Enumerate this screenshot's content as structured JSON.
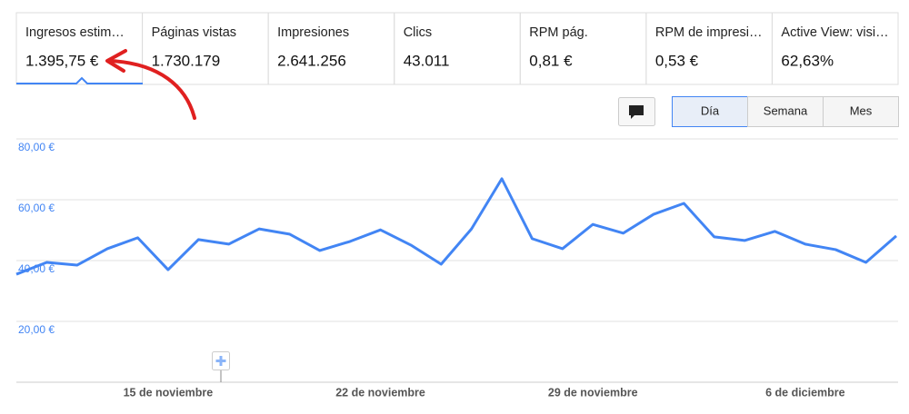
{
  "metrics": [
    {
      "label": "Ingresos estim…",
      "value": "1.395,75 €"
    },
    {
      "label": "Páginas vistas",
      "value": "1.730.179"
    },
    {
      "label": "Impresiones",
      "value": "2.641.256"
    },
    {
      "label": "Clics",
      "value": "43.011"
    },
    {
      "label": "RPM pág.",
      "value": "0,81 €"
    },
    {
      "label": "RPM de impresi…",
      "value": "0,53 €"
    },
    {
      "label": "Active View: visi…",
      "value": "62,63%"
    }
  ],
  "period_buttons": [
    "Día",
    "Semana",
    "Mes"
  ],
  "chart_data": {
    "type": "line",
    "categories": [
      null,
      null,
      null,
      null,
      null,
      "15 de noviembre",
      null,
      null,
      null,
      null,
      null,
      null,
      "22 de noviembre",
      null,
      null,
      null,
      null,
      null,
      null,
      "29 de noviembre",
      null,
      null,
      null,
      null,
      null,
      null,
      "6 de diciembre",
      null,
      null,
      null
    ],
    "values": [
      35.5,
      39.4,
      38.5,
      43.9,
      47.5,
      37.0,
      46.9,
      45.4,
      50.4,
      48.7,
      43.3,
      46.3,
      50.1,
      45.1,
      38.8,
      50.4,
      66.9,
      47.2,
      43.9,
      51.9,
      49.0,
      55.2,
      58.8,
      47.8,
      46.6,
      49.6,
      45.4,
      43.6,
      39.4,
      48.1
    ],
    "color": "#4285f4",
    "ylim": [
      0,
      80
    ],
    "yticks": [
      {
        "value": 20,
        "label": "20,00 €"
      },
      {
        "value": 40,
        "label": "40,00 €"
      },
      {
        "value": 60,
        "label": "60,00 €"
      },
      {
        "value": 80,
        "label": "80,00 €"
      }
    ],
    "grid": true
  }
}
